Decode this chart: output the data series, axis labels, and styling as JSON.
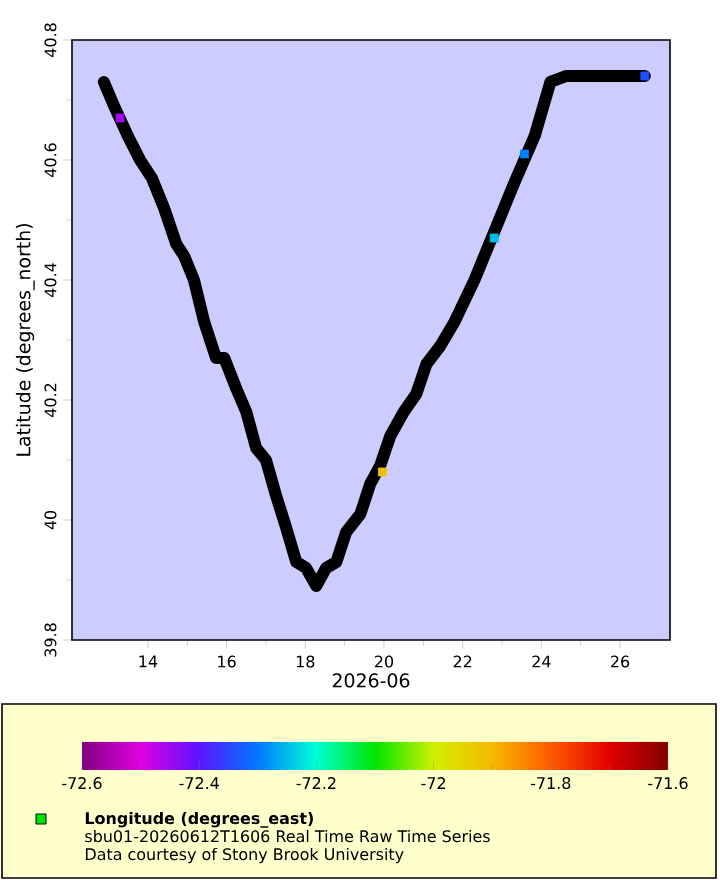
{
  "chart_data": {
    "type": "scatter",
    "xlabel": "2026-06",
    "ylabel": "Latitude (degrees_north)",
    "clabel": "Longitude (degrees_east)",
    "xlim": [
      12.07,
      27.27
    ],
    "xticks": [
      14,
      16,
      18,
      20,
      22,
      24,
      26
    ],
    "ylim": [
      39.8,
      40.8
    ],
    "yticks": [
      39.8,
      40,
      40.2,
      40.4,
      40.6,
      40.8
    ],
    "clim": [
      -72.6,
      -71.6
    ],
    "cticks": [
      -72.6,
      -72.4,
      -72.2,
      -72,
      -71.8,
      -71.6
    ],
    "series": [
      {
        "type": "line",
        "color": "#000000",
        "x": [
          12.88,
          13.14,
          13.49,
          13.8,
          14.1,
          14.41,
          14.72,
          14.92,
          15.17,
          15.43,
          15.73,
          15.94,
          16.24,
          16.5,
          16.75,
          17.0,
          17.26,
          17.5,
          17.77,
          18.02,
          18.28,
          18.53,
          18.79,
          19.04,
          19.4,
          19.65,
          19.9,
          20.16,
          20.5,
          20.82,
          21.08,
          21.43,
          21.79,
          22.3,
          22.8,
          23.3,
          23.83,
          24.23,
          24.64,
          25.5,
          25.86,
          26.63
        ],
        "values": [
          40.73,
          40.69,
          40.64,
          40.6,
          40.57,
          40.52,
          40.46,
          40.44,
          40.4,
          40.33,
          40.27,
          40.27,
          40.22,
          40.18,
          40.12,
          40.1,
          40.04,
          39.99,
          39.93,
          39.92,
          39.89,
          39.92,
          39.93,
          39.98,
          40.01,
          40.06,
          40.09,
          40.14,
          40.18,
          40.21,
          40.26,
          40.29,
          40.33,
          40.4,
          40.48,
          40.56,
          40.64,
          40.73,
          40.74,
          40.74,
          40.74,
          40.74
        ]
      },
      {
        "marker": "square",
        "colors": [
          "#9d0af0",
          "#f0c000",
          "#00c0f0",
          "#0080ff",
          "#2050ff"
        ],
        "x": [
          13.29,
          19.96,
          22.8,
          23.57,
          26.63
        ],
        "values": [
          40.67,
          40.08,
          40.47,
          40.61,
          40.74
        ],
        "cvalues": [
          -72.45,
          -71.93,
          -72.25,
          -72.3,
          -72.35
        ]
      }
    ],
    "annotations": [
      "sbu01-20260612T1606 Real Time Raw Time Series",
      "Data courtesy of Stony Brook University"
    ]
  }
}
